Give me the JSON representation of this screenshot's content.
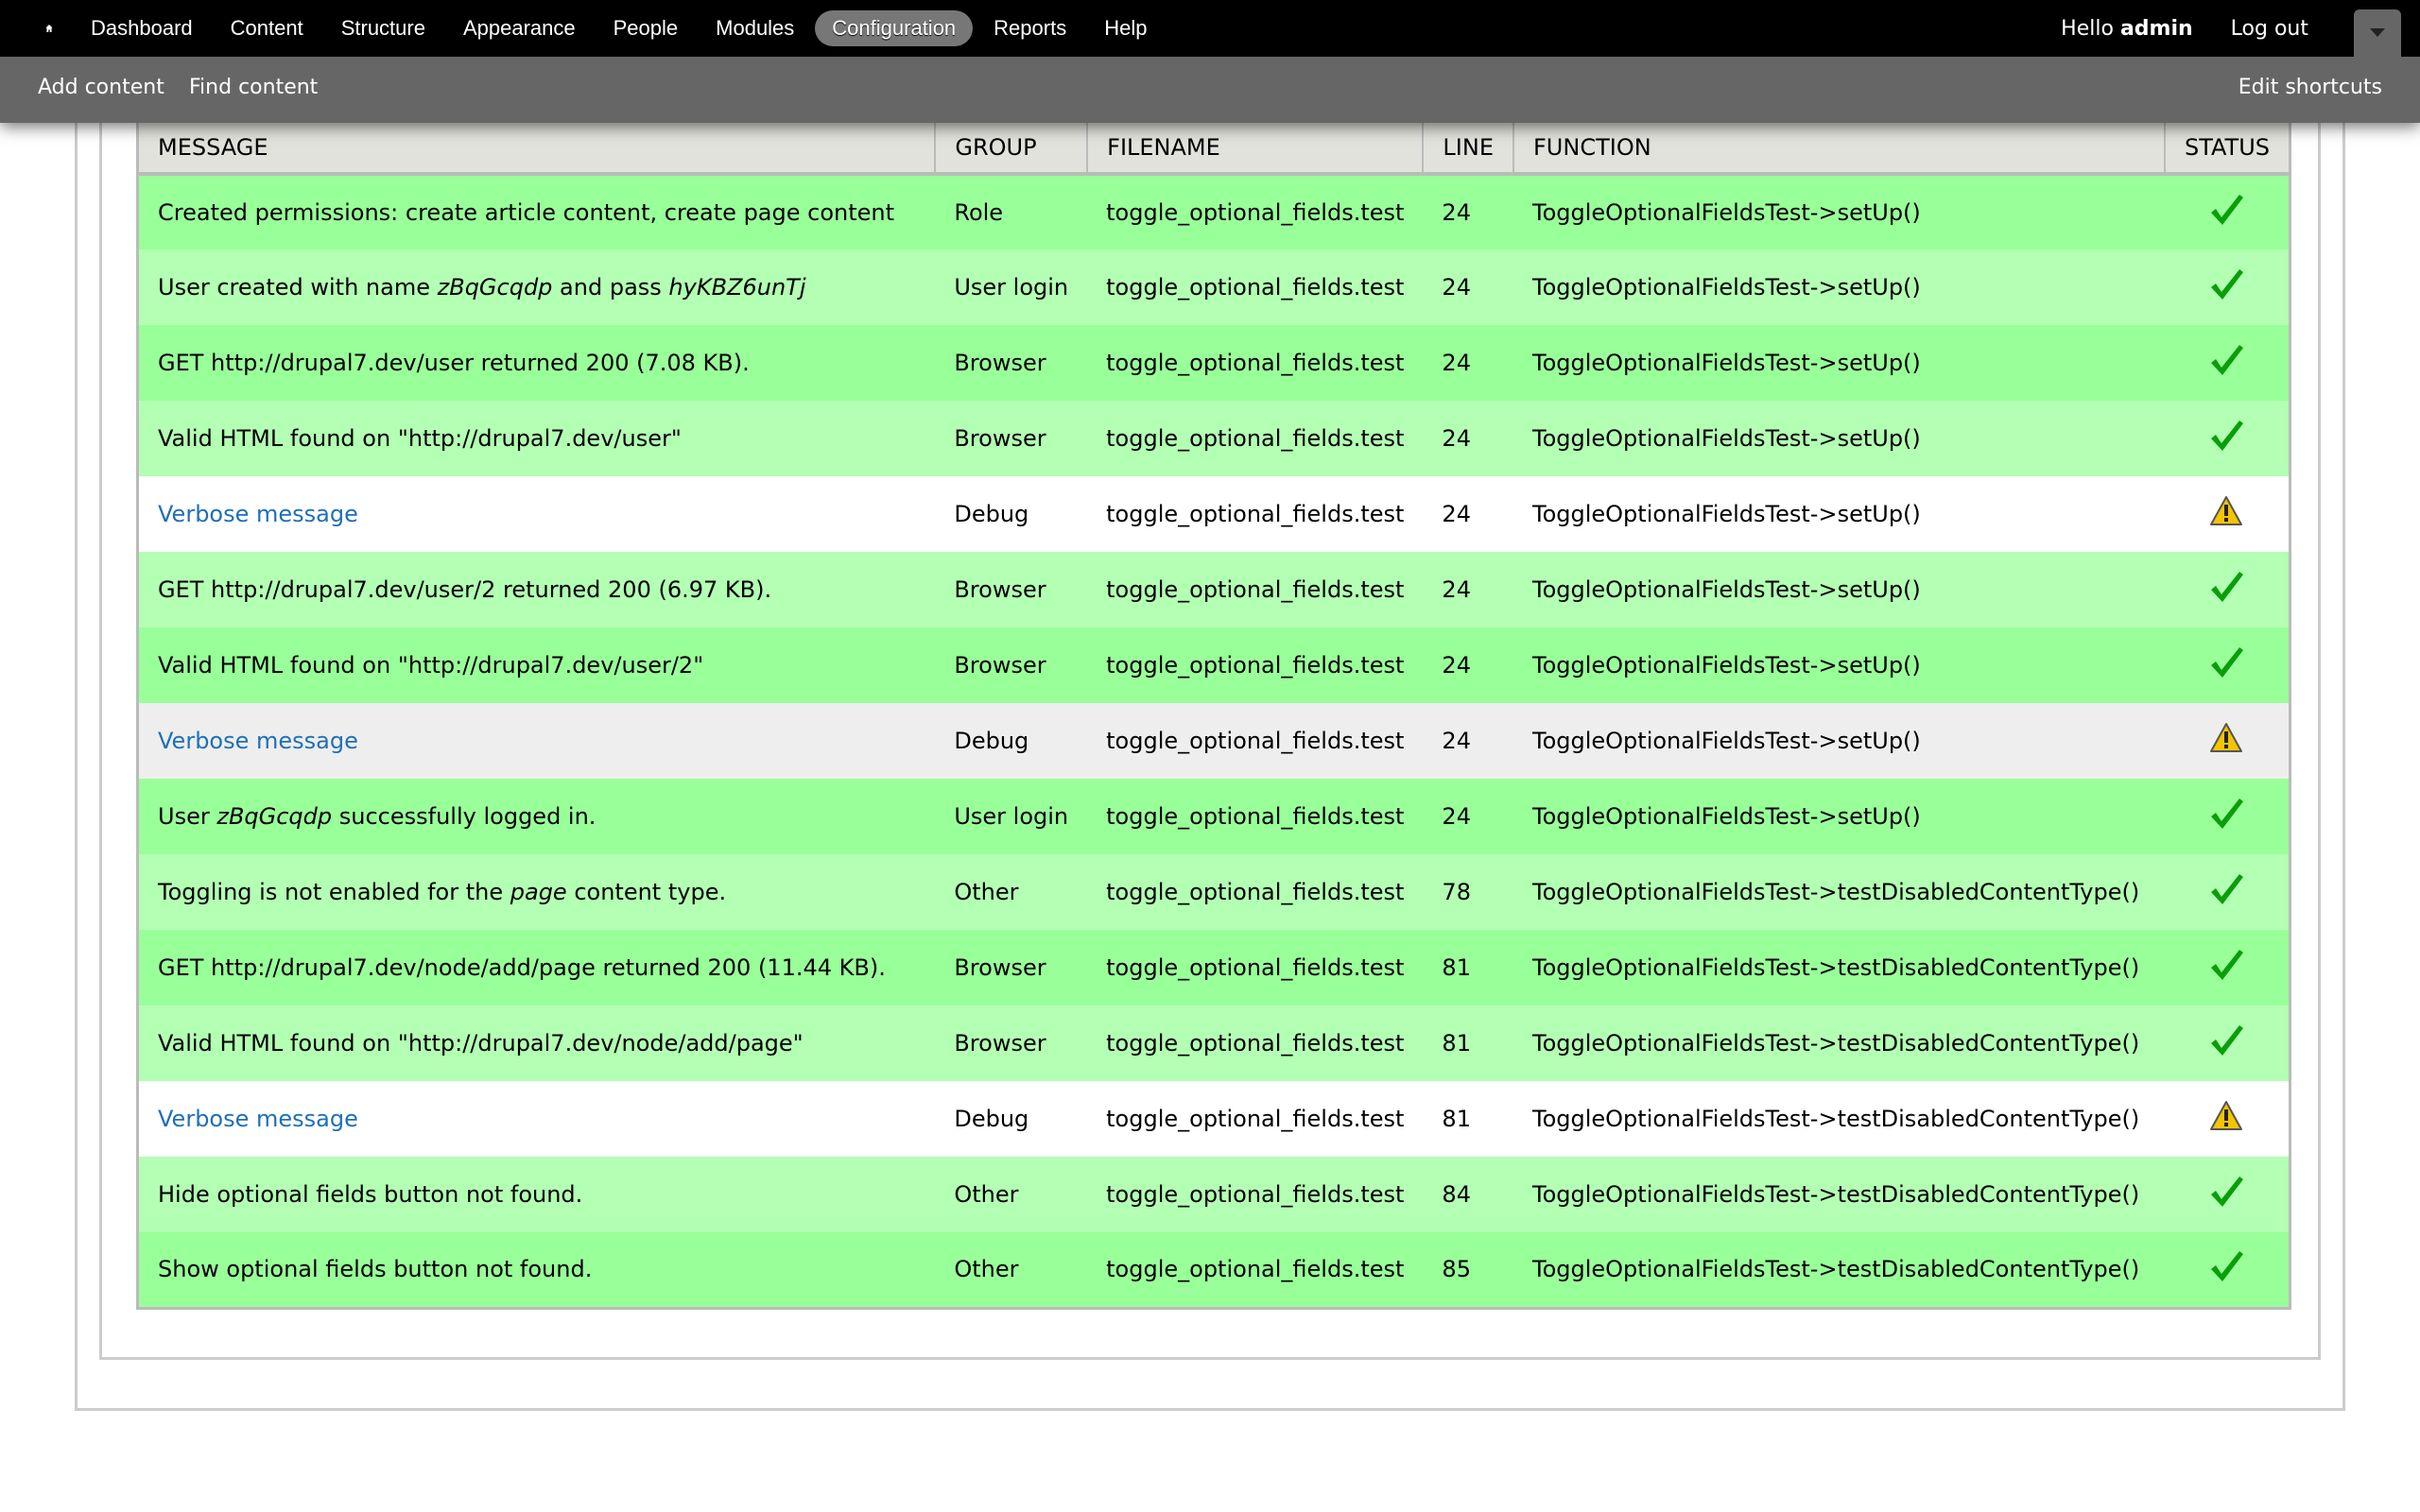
{
  "toolbar": {
    "home_icon": "home-icon",
    "nav": [
      "Dashboard",
      "Content",
      "Structure",
      "Appearance",
      "People",
      "Modules",
      "Configuration",
      "Reports",
      "Help"
    ],
    "active": "Configuration",
    "hello": "Hello",
    "username": "admin",
    "logout": "Log out"
  },
  "shortcuts": {
    "items": [
      "Add content",
      "Find content"
    ],
    "edit": "Edit shortcuts"
  },
  "colors": {
    "pass_odd": "#99ff99",
    "pass_even": "#b3ffb3",
    "debug_odd": "#ffffff",
    "debug_even": "#eeeeee",
    "link": "#1f6fb8",
    "check": "#0a9e0a",
    "warning": "#f5c400"
  },
  "table": {
    "headers": [
      "MESSAGE",
      "GROUP",
      "FILENAME",
      "LINE",
      "FUNCTION",
      "STATUS"
    ],
    "rows": [
      {
        "message": [
          {
            "t": "Created permissions: create article content, create page content"
          }
        ],
        "group": "Role",
        "file": "toggle_optional_fields.test",
        "line": "24",
        "function": "ToggleOptionalFieldsTest->setUp()",
        "status": "pass"
      },
      {
        "message": [
          {
            "t": "User created with name "
          },
          {
            "t": "zBqGcqdp",
            "em": true
          },
          {
            "t": " and pass "
          },
          {
            "t": "hyKBZ6unTj",
            "em": true
          }
        ],
        "group": "User login",
        "file": "toggle_optional_fields.test",
        "line": "24",
        "function": "ToggleOptionalFieldsTest->setUp()",
        "status": "pass"
      },
      {
        "message": [
          {
            "t": "GET http://drupal7.dev/user returned 200 (7.08 KB)."
          }
        ],
        "group": "Browser",
        "file": "toggle_optional_fields.test",
        "line": "24",
        "function": "ToggleOptionalFieldsTest->setUp()",
        "status": "pass"
      },
      {
        "message": [
          {
            "t": "Valid HTML found on \"http://drupal7.dev/user\""
          }
        ],
        "group": "Browser",
        "file": "toggle_optional_fields.test",
        "line": "24",
        "function": "ToggleOptionalFieldsTest->setUp()",
        "status": "pass"
      },
      {
        "message": [
          {
            "t": "Verbose message",
            "link": true
          }
        ],
        "group": "Debug",
        "file": "toggle_optional_fields.test",
        "line": "24",
        "function": "ToggleOptionalFieldsTest->setUp()",
        "status": "debug"
      },
      {
        "message": [
          {
            "t": "GET http://drupal7.dev/user/2 returned 200 (6.97 KB)."
          }
        ],
        "group": "Browser",
        "file": "toggle_optional_fields.test",
        "line": "24",
        "function": "ToggleOptionalFieldsTest->setUp()",
        "status": "pass"
      },
      {
        "message": [
          {
            "t": "Valid HTML found on \"http://drupal7.dev/user/2\""
          }
        ],
        "group": "Browser",
        "file": "toggle_optional_fields.test",
        "line": "24",
        "function": "ToggleOptionalFieldsTest->setUp()",
        "status": "pass"
      },
      {
        "message": [
          {
            "t": "Verbose message",
            "link": true
          }
        ],
        "group": "Debug",
        "file": "toggle_optional_fields.test",
        "line": "24",
        "function": "ToggleOptionalFieldsTest->setUp()",
        "status": "debug"
      },
      {
        "message": [
          {
            "t": "User "
          },
          {
            "t": "zBqGcqdp",
            "em": true
          },
          {
            "t": " successfully logged in."
          }
        ],
        "group": "User login",
        "file": "toggle_optional_fields.test",
        "line": "24",
        "function": "ToggleOptionalFieldsTest->setUp()",
        "status": "pass"
      },
      {
        "message": [
          {
            "t": "Toggling is not enabled for the "
          },
          {
            "t": "page",
            "em": true
          },
          {
            "t": " content type."
          }
        ],
        "group": "Other",
        "file": "toggle_optional_fields.test",
        "line": "78",
        "function": "ToggleOptionalFieldsTest->testDisabledContentType()",
        "status": "pass"
      },
      {
        "message": [
          {
            "t": "GET http://drupal7.dev/node/add/page returned 200 (11.44 KB)."
          }
        ],
        "group": "Browser",
        "file": "toggle_optional_fields.test",
        "line": "81",
        "function": "ToggleOptionalFieldsTest->testDisabledContentType()",
        "status": "pass"
      },
      {
        "message": [
          {
            "t": "Valid HTML found on \"http://drupal7.dev/node/add/page\""
          }
        ],
        "group": "Browser",
        "file": "toggle_optional_fields.test",
        "line": "81",
        "function": "ToggleOptionalFieldsTest->testDisabledContentType()",
        "status": "pass"
      },
      {
        "message": [
          {
            "t": "Verbose message",
            "link": true
          }
        ],
        "group": "Debug",
        "file": "toggle_optional_fields.test",
        "line": "81",
        "function": "ToggleOptionalFieldsTest->testDisabledContentType()",
        "status": "debug"
      },
      {
        "message": [
          {
            "t": "Hide optional fields button not found."
          }
        ],
        "group": "Other",
        "file": "toggle_optional_fields.test",
        "line": "84",
        "function": "ToggleOptionalFieldsTest->testDisabledContentType()",
        "status": "pass"
      },
      {
        "message": [
          {
            "t": "Show optional fields button not found."
          }
        ],
        "group": "Other",
        "file": "toggle_optional_fields.test",
        "line": "85",
        "function": "ToggleOptionalFieldsTest->testDisabledContentType()",
        "status": "pass"
      }
    ]
  }
}
